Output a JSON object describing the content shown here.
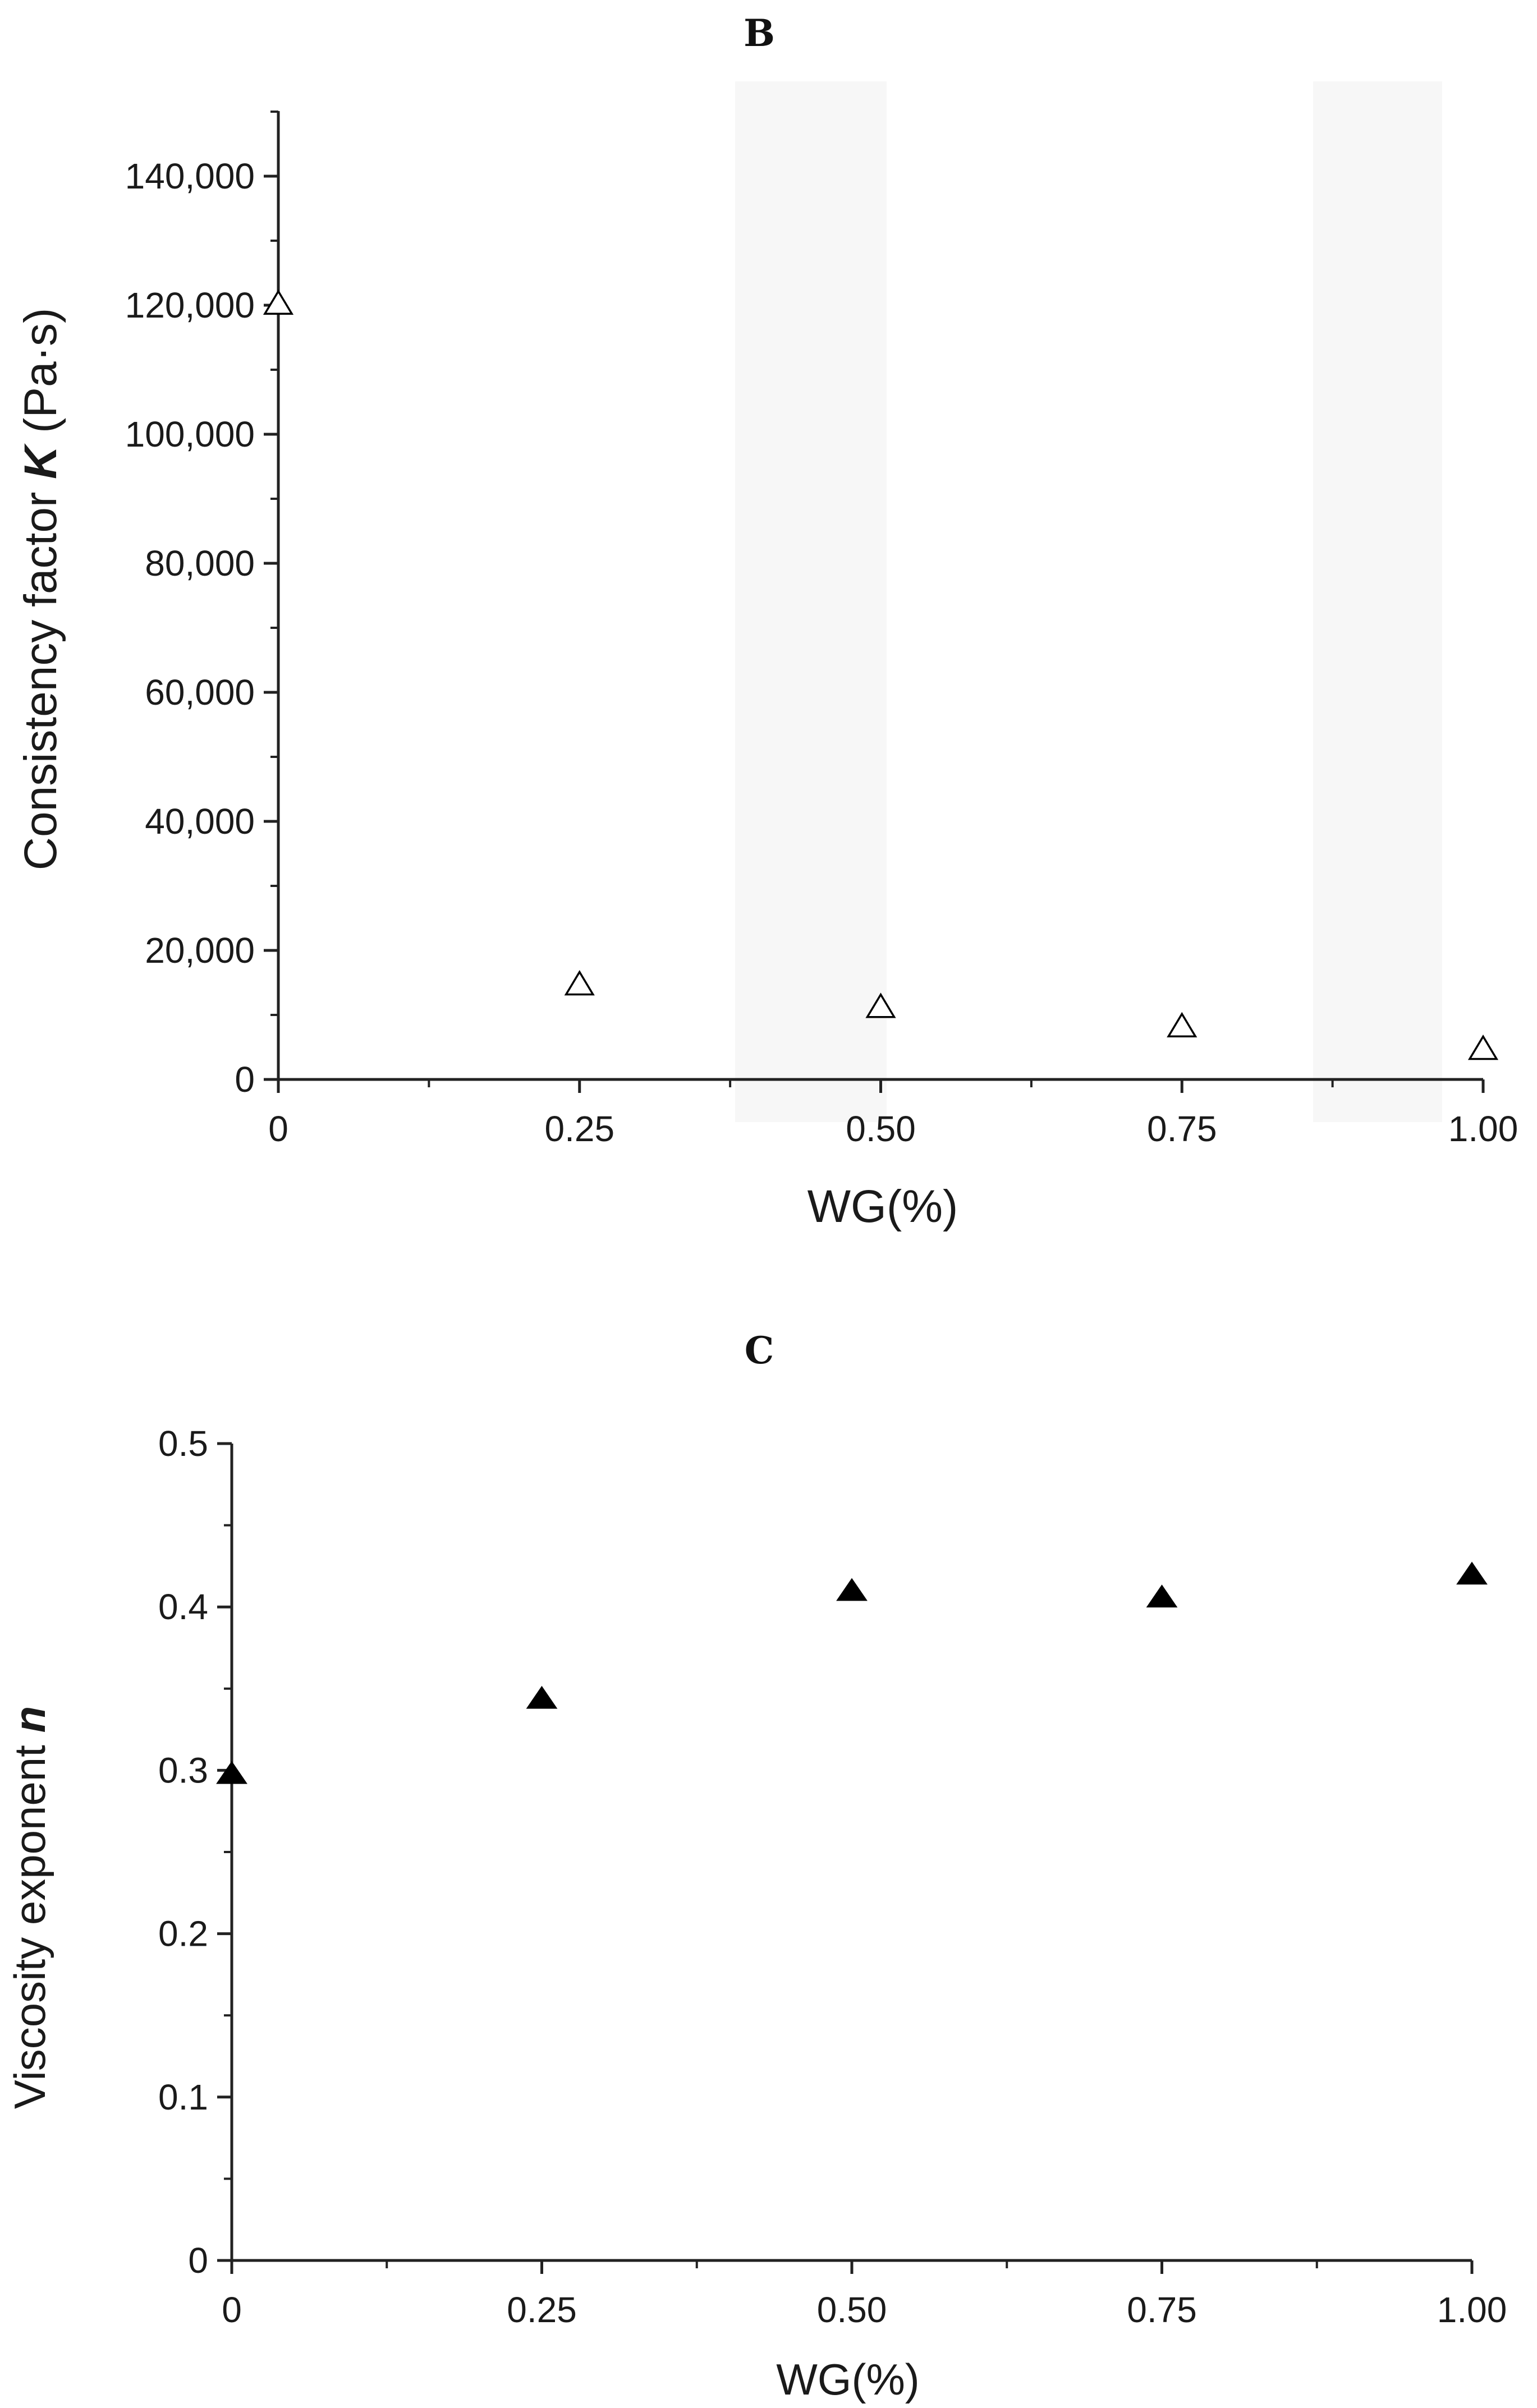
{
  "chart_data": [
    {
      "panel": "B",
      "type": "scatter",
      "title": "B",
      "xlabel": "WG(%)",
      "ylabel_prefix": "Consistency factor ",
      "ylabel_symbol": "K",
      "ylabel_suffix": " (Pa·s)",
      "x_ticks": [
        "0",
        "0.25",
        "0.50",
        "0.75",
        "1.00"
      ],
      "y_ticks": [
        "0",
        "20,000",
        "40,000",
        "60,000",
        "80,000",
        "100,000",
        "120,000",
        "140,000"
      ],
      "xlim": [
        0,
        1.0
      ],
      "ylim": [
        0,
        150000
      ],
      "marker": "open-triangle",
      "grid": false,
      "series": [
        {
          "name": "K",
          "x": [
            0,
            0.25,
            0.5,
            0.75,
            1.0
          ],
          "y": [
            120000,
            14500,
            11000,
            8000,
            4500
          ]
        }
      ]
    },
    {
      "panel": "C",
      "type": "scatter",
      "title": "C",
      "xlabel": "WG(%)",
      "ylabel_prefix": "Viscosity exponent ",
      "ylabel_symbol": "n",
      "ylabel_suffix": "",
      "x_ticks": [
        "0",
        "0.25",
        "0.50",
        "0.75",
        "1.00"
      ],
      "y_ticks": [
        "0",
        "0.1",
        "0.2",
        "0.3",
        "0.4",
        "0.5"
      ],
      "xlim": [
        0,
        1.0
      ],
      "ylim": [
        0,
        0.5
      ],
      "marker": "filled-triangle",
      "grid": false,
      "series": [
        {
          "name": "n",
          "x": [
            0,
            0.25,
            0.5,
            0.75,
            1.0
          ],
          "y": [
            0.297,
            0.343,
            0.409,
            0.405,
            0.419
          ]
        }
      ]
    }
  ]
}
